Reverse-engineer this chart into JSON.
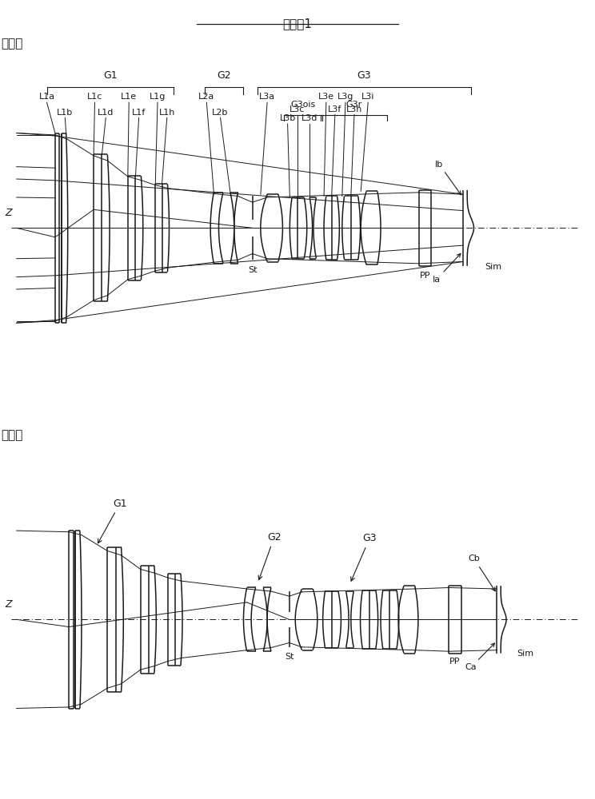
{
  "title": "实施例1",
  "label_infinity": "无限远",
  "label_near": "近距离",
  "bg_color": "#ffffff",
  "line_color": "#1a1a1a",
  "font_size_title": 11,
  "font_size_label": 9,
  "font_size_small": 8
}
